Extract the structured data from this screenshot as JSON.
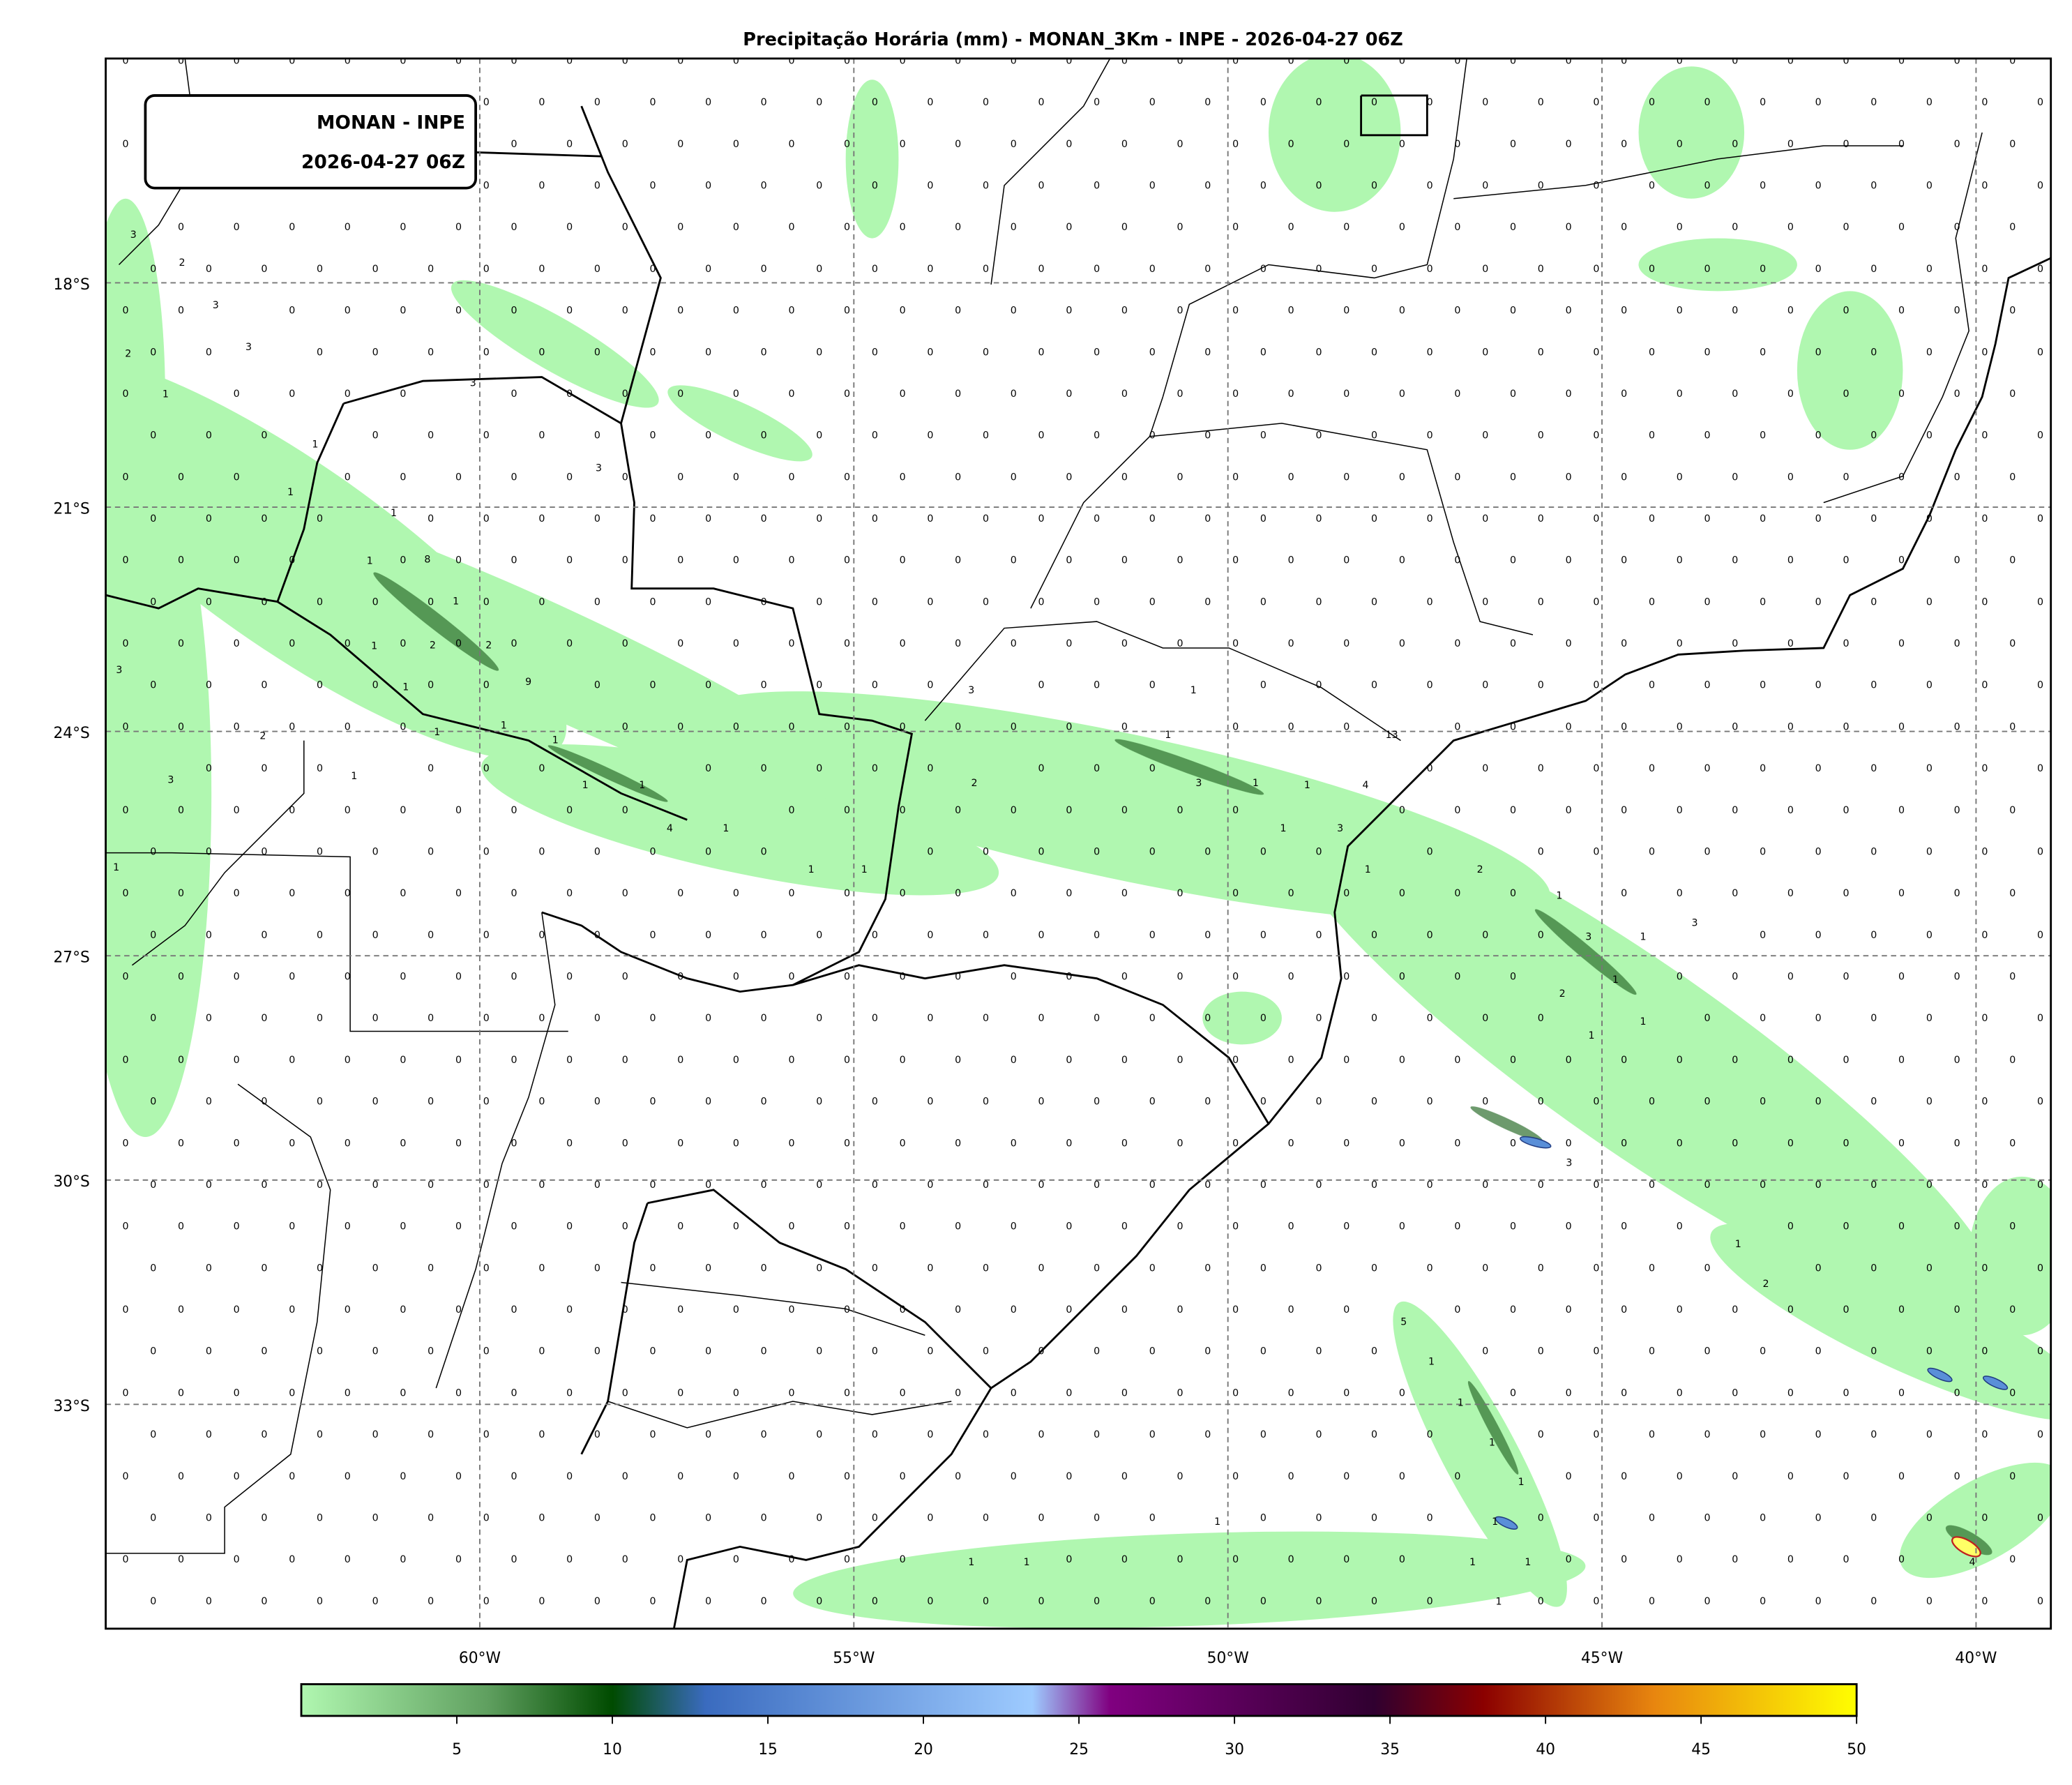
{
  "title": "Precipitação Horária (mm) - MONAN_3Km - INPE - 2026-04-27 06Z",
  "label_box": {
    "line1": "MONAN - INPE",
    "line2": "2026-04-27 06Z"
  },
  "map": {
    "lon_range": [
      -65,
      -39
    ],
    "lat_range": [
      -36,
      -15
    ],
    "grid": true,
    "lon_ticks": [
      {
        "value": -60,
        "label": "60°W"
      },
      {
        "value": -55,
        "label": "55°W"
      },
      {
        "value": -50,
        "label": "50°W"
      },
      {
        "value": -45,
        "label": "45°W"
      },
      {
        "value": -40,
        "label": "40°W"
      }
    ],
    "lat_ticks": [
      {
        "value": -18,
        "label": "18°S"
      },
      {
        "value": -21,
        "label": "21°S"
      },
      {
        "value": -24,
        "label": "24°S"
      },
      {
        "value": -27,
        "label": "27°S"
      },
      {
        "value": -30,
        "label": "30°S"
      },
      {
        "value": -33,
        "label": "33°S"
      }
    ],
    "default_station_value": "0",
    "station_values": [
      {
        "lon": -64.63,
        "lat": -17.4,
        "v": "3"
      },
      {
        "lon": -63.98,
        "lat": -17.77,
        "v": "2"
      },
      {
        "lon": -63.53,
        "lat": -18.34,
        "v": "3"
      },
      {
        "lon": -63.09,
        "lat": -18.9,
        "v": "3"
      },
      {
        "lon": -64.7,
        "lat": -18.99,
        "v": "2"
      },
      {
        "lon": -64.2,
        "lat": -19.53,
        "v": "1"
      },
      {
        "lon": -60.09,
        "lat": -19.38,
        "v": "3"
      },
      {
        "lon": -58.41,
        "lat": -20.52,
        "v": "3"
      },
      {
        "lon": -62.2,
        "lat": -20.2,
        "v": "1"
      },
      {
        "lon": -62.53,
        "lat": -20.84,
        "v": "1"
      },
      {
        "lon": -61.15,
        "lat": -21.12,
        "v": "1"
      },
      {
        "lon": -61.47,
        "lat": -21.76,
        "v": "1"
      },
      {
        "lon": -60.7,
        "lat": -21.74,
        "v": "8"
      },
      {
        "lon": -60.32,
        "lat": -22.3,
        "v": "1"
      },
      {
        "lon": -60.63,
        "lat": -22.89,
        "v": "2"
      },
      {
        "lon": -61.41,
        "lat": -22.9,
        "v": "1"
      },
      {
        "lon": -59.88,
        "lat": -22.89,
        "v": "2"
      },
      {
        "lon": -59.35,
        "lat": -23.38,
        "v": "9"
      },
      {
        "lon": -60.99,
        "lat": -23.45,
        "v": "1"
      },
      {
        "lon": -59.68,
        "lat": -23.96,
        "v": "1"
      },
      {
        "lon": -60.57,
        "lat": -24.05,
        "v": "1"
      },
      {
        "lon": -58.99,
        "lat": -24.16,
        "v": "1"
      },
      {
        "lon": -64.82,
        "lat": -23.22,
        "v": "3"
      },
      {
        "lon": -62.9,
        "lat": -24.1,
        "v": "2"
      },
      {
        "lon": -64.13,
        "lat": -24.69,
        "v": "3"
      },
      {
        "lon": -61.68,
        "lat": -24.64,
        "v": "1"
      },
      {
        "lon": -58.59,
        "lat": -24.76,
        "v": "1"
      },
      {
        "lon": -57.83,
        "lat": -24.76,
        "v": "1"
      },
      {
        "lon": -57.46,
        "lat": -25.34,
        "v": "4"
      },
      {
        "lon": -56.71,
        "lat": -25.34,
        "v": "1"
      },
      {
        "lon": -55.57,
        "lat": -25.89,
        "v": "1"
      },
      {
        "lon": -54.86,
        "lat": -25.89,
        "v": "1"
      },
      {
        "lon": -64.86,
        "lat": -25.86,
        "v": "1"
      },
      {
        "lon": -53.43,
        "lat": -23.49,
        "v": "3"
      },
      {
        "lon": -50.46,
        "lat": -23.49,
        "v": "1"
      },
      {
        "lon": -50.8,
        "lat": -24.09,
        "v": "1"
      },
      {
        "lon": -53.39,
        "lat": -24.73,
        "v": "2"
      },
      {
        "lon": -50.39,
        "lat": -24.73,
        "v": "3"
      },
      {
        "lon": -49.63,
        "lat": -24.73,
        "v": "1"
      },
      {
        "lon": -48.94,
        "lat": -24.76,
        "v": "1"
      },
      {
        "lon": -47.81,
        "lat": -24.09,
        "v": "13"
      },
      {
        "lon": -48.16,
        "lat": -24.76,
        "v": "4"
      },
      {
        "lon": -49.26,
        "lat": -25.34,
        "v": "1"
      },
      {
        "lon": -48.5,
        "lat": -25.34,
        "v": "3"
      },
      {
        "lon": -48.13,
        "lat": -25.89,
        "v": "1"
      },
      {
        "lon": -46.63,
        "lat": -25.89,
        "v": "2"
      },
      {
        "lon": -45.57,
        "lat": -26.24,
        "v": "1"
      },
      {
        "lon": -45.18,
        "lat": -26.79,
        "v": "3"
      },
      {
        "lon": -44.45,
        "lat": -26.79,
        "v": "1"
      },
      {
        "lon": -43.76,
        "lat": -26.6,
        "v": "3"
      },
      {
        "lon": -44.82,
        "lat": -27.36,
        "v": "1"
      },
      {
        "lon": -45.53,
        "lat": -27.55,
        "v": "2"
      },
      {
        "lon": -44.45,
        "lat": -27.92,
        "v": "1"
      },
      {
        "lon": -45.14,
        "lat": -28.11,
        "v": "1"
      },
      {
        "lon": -45.44,
        "lat": -29.81,
        "v": "3"
      },
      {
        "lon": -43.18,
        "lat": -30.9,
        "v": "1"
      },
      {
        "lon": -42.81,
        "lat": -31.43,
        "v": "2"
      },
      {
        "lon": -47.65,
        "lat": -31.94,
        "v": "5"
      },
      {
        "lon": -47.28,
        "lat": -32.47,
        "v": "1"
      },
      {
        "lon": -46.89,
        "lat": -33.02,
        "v": "1"
      },
      {
        "lon": -46.47,
        "lat": -33.55,
        "v": "1"
      },
      {
        "lon": -46.08,
        "lat": -34.08,
        "v": "1"
      },
      {
        "lon": -46.43,
        "lat": -34.61,
        "v": "1"
      },
      {
        "lon": -45.99,
        "lat": -35.15,
        "v": "1"
      },
      {
        "lon": -46.73,
        "lat": -35.15,
        "v": "1"
      },
      {
        "lon": -46.38,
        "lat": -35.68,
        "v": "1"
      },
      {
        "lon": -50.14,
        "lat": -34.61,
        "v": "1"
      },
      {
        "lon": -53.43,
        "lat": -35.15,
        "v": "1"
      },
      {
        "lon": -52.69,
        "lat": -35.15,
        "v": "1"
      },
      {
        "lon": -40.05,
        "lat": -35.15,
        "v": "4"
      }
    ]
  },
  "colorbar": {
    "range": [
      0,
      50
    ],
    "ticks": [
      "5",
      "10",
      "15",
      "20",
      "25",
      "30",
      "35",
      "40",
      "45",
      "50"
    ],
    "colors": [
      {
        "at": 0,
        "color": "#b0f7b0"
      },
      {
        "at": 0.12,
        "color": "#5f9f5f"
      },
      {
        "at": 0.2,
        "color": "#004b00"
      },
      {
        "at": 0.26,
        "color": "#3a6bbf"
      },
      {
        "at": 0.47,
        "color": "#9ecbff"
      },
      {
        "at": 0.52,
        "color": "#800080"
      },
      {
        "at": 0.69,
        "color": "#300030"
      },
      {
        "at": 0.76,
        "color": "#8b0000"
      },
      {
        "at": 0.87,
        "color": "#e8860f"
      },
      {
        "at": 1,
        "color": "#ffff00"
      }
    ]
  },
  "colors": {
    "rain_light": "#b0f7b0",
    "rain_dark": "#2f6f2f",
    "grid": "#777777"
  }
}
